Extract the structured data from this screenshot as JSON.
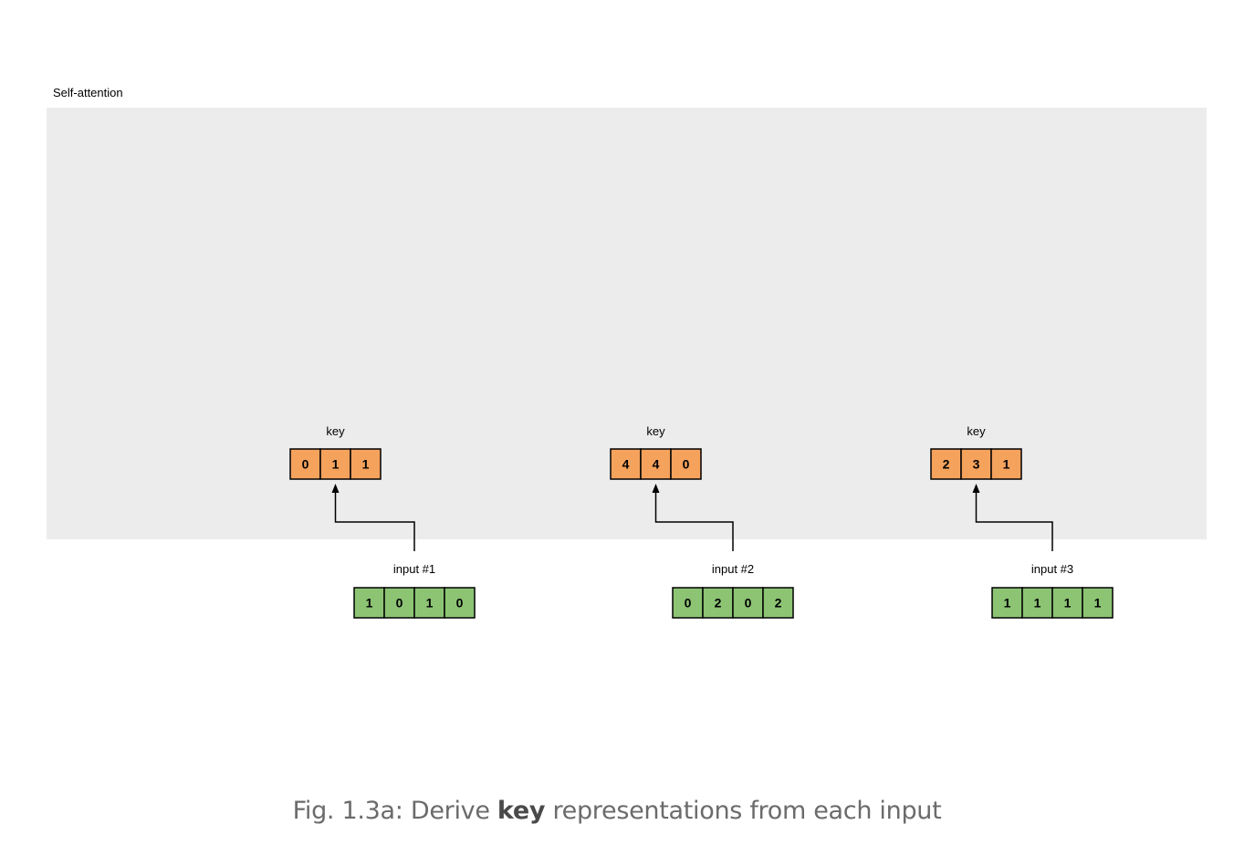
{
  "panel": {
    "title": "Self-attention"
  },
  "colors": {
    "panel_bg": "#ececec",
    "key_fill": "#f5a25d",
    "input_fill": "#8cc474",
    "stroke": "#000000"
  },
  "columns": [
    {
      "key_label": "key",
      "key_values": [
        "0",
        "1",
        "1"
      ],
      "input_label": "input #1",
      "input_values": [
        "1",
        "0",
        "1",
        "0"
      ]
    },
    {
      "key_label": "key",
      "key_values": [
        "4",
        "4",
        "0"
      ],
      "input_label": "input #2",
      "input_values": [
        "0",
        "2",
        "0",
        "2"
      ]
    },
    {
      "key_label": "key",
      "key_values": [
        "2",
        "3",
        "1"
      ],
      "input_label": "input #3",
      "input_values": [
        "1",
        "1",
        "1",
        "1"
      ]
    }
  ],
  "caption": {
    "prefix": "Fig. 1.3a: Derive ",
    "emphasis": "key",
    "suffix": " representations from each input"
  }
}
